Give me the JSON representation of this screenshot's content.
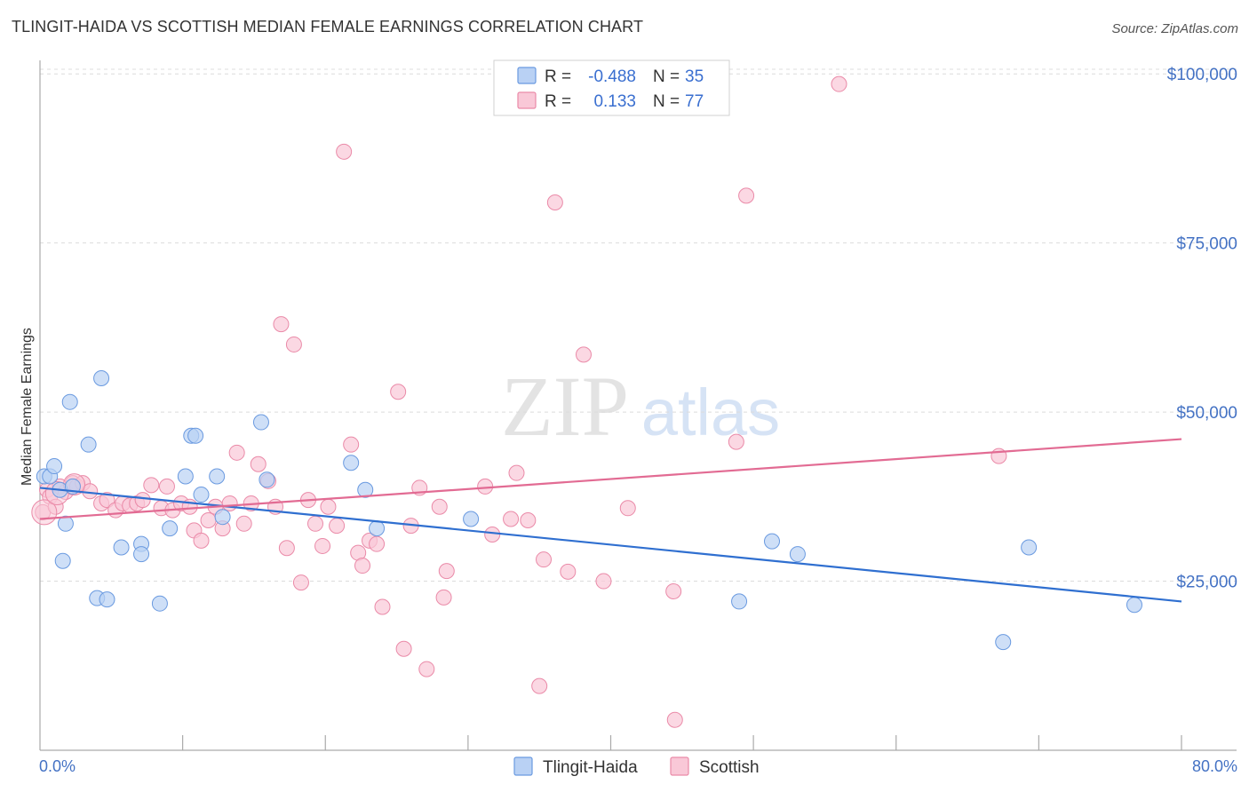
{
  "title": "TLINGIT-HAIDA VS SCOTTISH MEDIAN FEMALE EARNINGS CORRELATION CHART",
  "source": "Source: ZipAtlas.com",
  "watermark": {
    "zip": "ZIP",
    "atlas": "atlas"
  },
  "legend": {
    "rows": [
      {
        "r_label": "R =",
        "r_value": "-0.488",
        "n_label": "N =",
        "n_value": "35",
        "color": "#aec9f0"
      },
      {
        "r_label": "R =",
        "r_value": "0.133",
        "n_label": "N =",
        "n_value": "77",
        "color": "#f6b7cb"
      }
    ]
  },
  "chart_data": {
    "type": "scatter",
    "title": "TLINGIT-HAIDA VS SCOTTISH MEDIAN FEMALE EARNINGS CORRELATION CHART",
    "xlabel": "",
    "ylabel": "Median Female Earnings",
    "xlim": [
      0,
      80
    ],
    "ylim": [
      0,
      102000
    ],
    "x_tick_labels": [
      "0.0%",
      "80.0%"
    ],
    "y_ticks": [
      25000,
      50000,
      75000,
      100000
    ],
    "y_tick_labels": [
      "$25,000",
      "$50,000",
      "$75,000",
      "$100,000"
    ],
    "grid": true,
    "series": [
      {
        "name": "Tlingit-Haida",
        "color": "#6a9ae0",
        "fill": "#b9d1f4",
        "trend": {
          "x": [
            0,
            80
          ],
          "y": [
            38800,
            22000
          ],
          "color": "#2f6fd0"
        },
        "points": [
          [
            0.3,
            40500
          ],
          [
            0.7,
            40500
          ],
          [
            1.0,
            42000
          ],
          [
            1.4,
            38500
          ],
          [
            1.8,
            33500
          ],
          [
            1.6,
            28000
          ],
          [
            2.1,
            51500
          ],
          [
            2.3,
            39000
          ],
          [
            3.4,
            45200
          ],
          [
            4.3,
            55000
          ],
          [
            4.0,
            22500
          ],
          [
            4.7,
            22300
          ],
          [
            5.7,
            30000
          ],
          [
            7.1,
            30500
          ],
          [
            7.1,
            29000
          ],
          [
            8.4,
            21700
          ],
          [
            9.1,
            32800
          ],
          [
            10.2,
            40500
          ],
          [
            10.6,
            46500
          ],
          [
            10.9,
            46500
          ],
          [
            11.3,
            37800
          ],
          [
            12.4,
            40500
          ],
          [
            12.8,
            34500
          ],
          [
            15.5,
            48500
          ],
          [
            15.9,
            40000
          ],
          [
            21.8,
            42500
          ],
          [
            22.8,
            38500
          ],
          [
            23.6,
            32800
          ],
          [
            30.2,
            34200
          ],
          [
            49.0,
            22000
          ],
          [
            51.3,
            30900
          ],
          [
            53.1,
            29000
          ],
          [
            67.5,
            16000
          ],
          [
            69.3,
            30000
          ],
          [
            76.7,
            21500
          ]
        ]
      },
      {
        "name": "Scottish",
        "color": "#ea8aa8",
        "fill": "#f9c8d7",
        "trend": {
          "x": [
            0,
            80
          ],
          "y": [
            34200,
            46000
          ],
          "color": "#e26b93"
        },
        "points": [
          [
            0.2,
            35200
          ],
          [
            0.5,
            38500
          ],
          [
            0.7,
            37500
          ],
          [
            1.1,
            36000
          ],
          [
            1.4,
            39000
          ],
          [
            1.8,
            38200
          ],
          [
            2.3,
            39500
          ],
          [
            2.6,
            39000
          ],
          [
            3.0,
            39500
          ],
          [
            3.5,
            38300
          ],
          [
            4.3,
            36500
          ],
          [
            4.7,
            37000
          ],
          [
            5.3,
            35500
          ],
          [
            5.8,
            36500
          ],
          [
            6.3,
            36200
          ],
          [
            6.8,
            36500
          ],
          [
            7.2,
            37000
          ],
          [
            7.8,
            39200
          ],
          [
            8.5,
            35800
          ],
          [
            8.9,
            39000
          ],
          [
            9.3,
            35500
          ],
          [
            9.9,
            36500
          ],
          [
            10.5,
            36000
          ],
          [
            10.8,
            32500
          ],
          [
            11.3,
            31000
          ],
          [
            11.8,
            34000
          ],
          [
            12.3,
            36000
          ],
          [
            12.8,
            32800
          ],
          [
            13.3,
            36500
          ],
          [
            13.8,
            44000
          ],
          [
            14.3,
            33500
          ],
          [
            14.8,
            36500
          ],
          [
            15.3,
            42300
          ],
          [
            16.0,
            39800
          ],
          [
            16.5,
            36000
          ],
          [
            16.9,
            63000
          ],
          [
            17.3,
            29900
          ],
          [
            17.8,
            60000
          ],
          [
            18.3,
            24800
          ],
          [
            18.8,
            37000
          ],
          [
            19.3,
            33500
          ],
          [
            19.8,
            30200
          ],
          [
            20.2,
            36000
          ],
          [
            20.8,
            33200
          ],
          [
            21.3,
            88500
          ],
          [
            21.8,
            45200
          ],
          [
            22.3,
            29200
          ],
          [
            22.6,
            27300
          ],
          [
            23.1,
            31000
          ],
          [
            23.6,
            30500
          ],
          [
            24.0,
            21200
          ],
          [
            25.1,
            53000
          ],
          [
            25.5,
            15000
          ],
          [
            26.0,
            33200
          ],
          [
            26.6,
            38800
          ],
          [
            27.1,
            12000
          ],
          [
            28.0,
            36000
          ],
          [
            28.5,
            26500
          ],
          [
            28.3,
            22600
          ],
          [
            31.2,
            39000
          ],
          [
            31.7,
            31900
          ],
          [
            33.0,
            34200
          ],
          [
            33.4,
            41000
          ],
          [
            34.2,
            34000
          ],
          [
            35.0,
            9500
          ],
          [
            35.3,
            28200
          ],
          [
            36.1,
            81000
          ],
          [
            37.0,
            26400
          ],
          [
            38.1,
            58500
          ],
          [
            39.5,
            25000
          ],
          [
            41.2,
            35800
          ],
          [
            44.5,
            4500
          ],
          [
            44.4,
            23500
          ],
          [
            48.8,
            45600
          ],
          [
            49.5,
            82000
          ],
          [
            56.0,
            98500
          ],
          [
            67.2,
            43500
          ]
        ]
      }
    ]
  }
}
